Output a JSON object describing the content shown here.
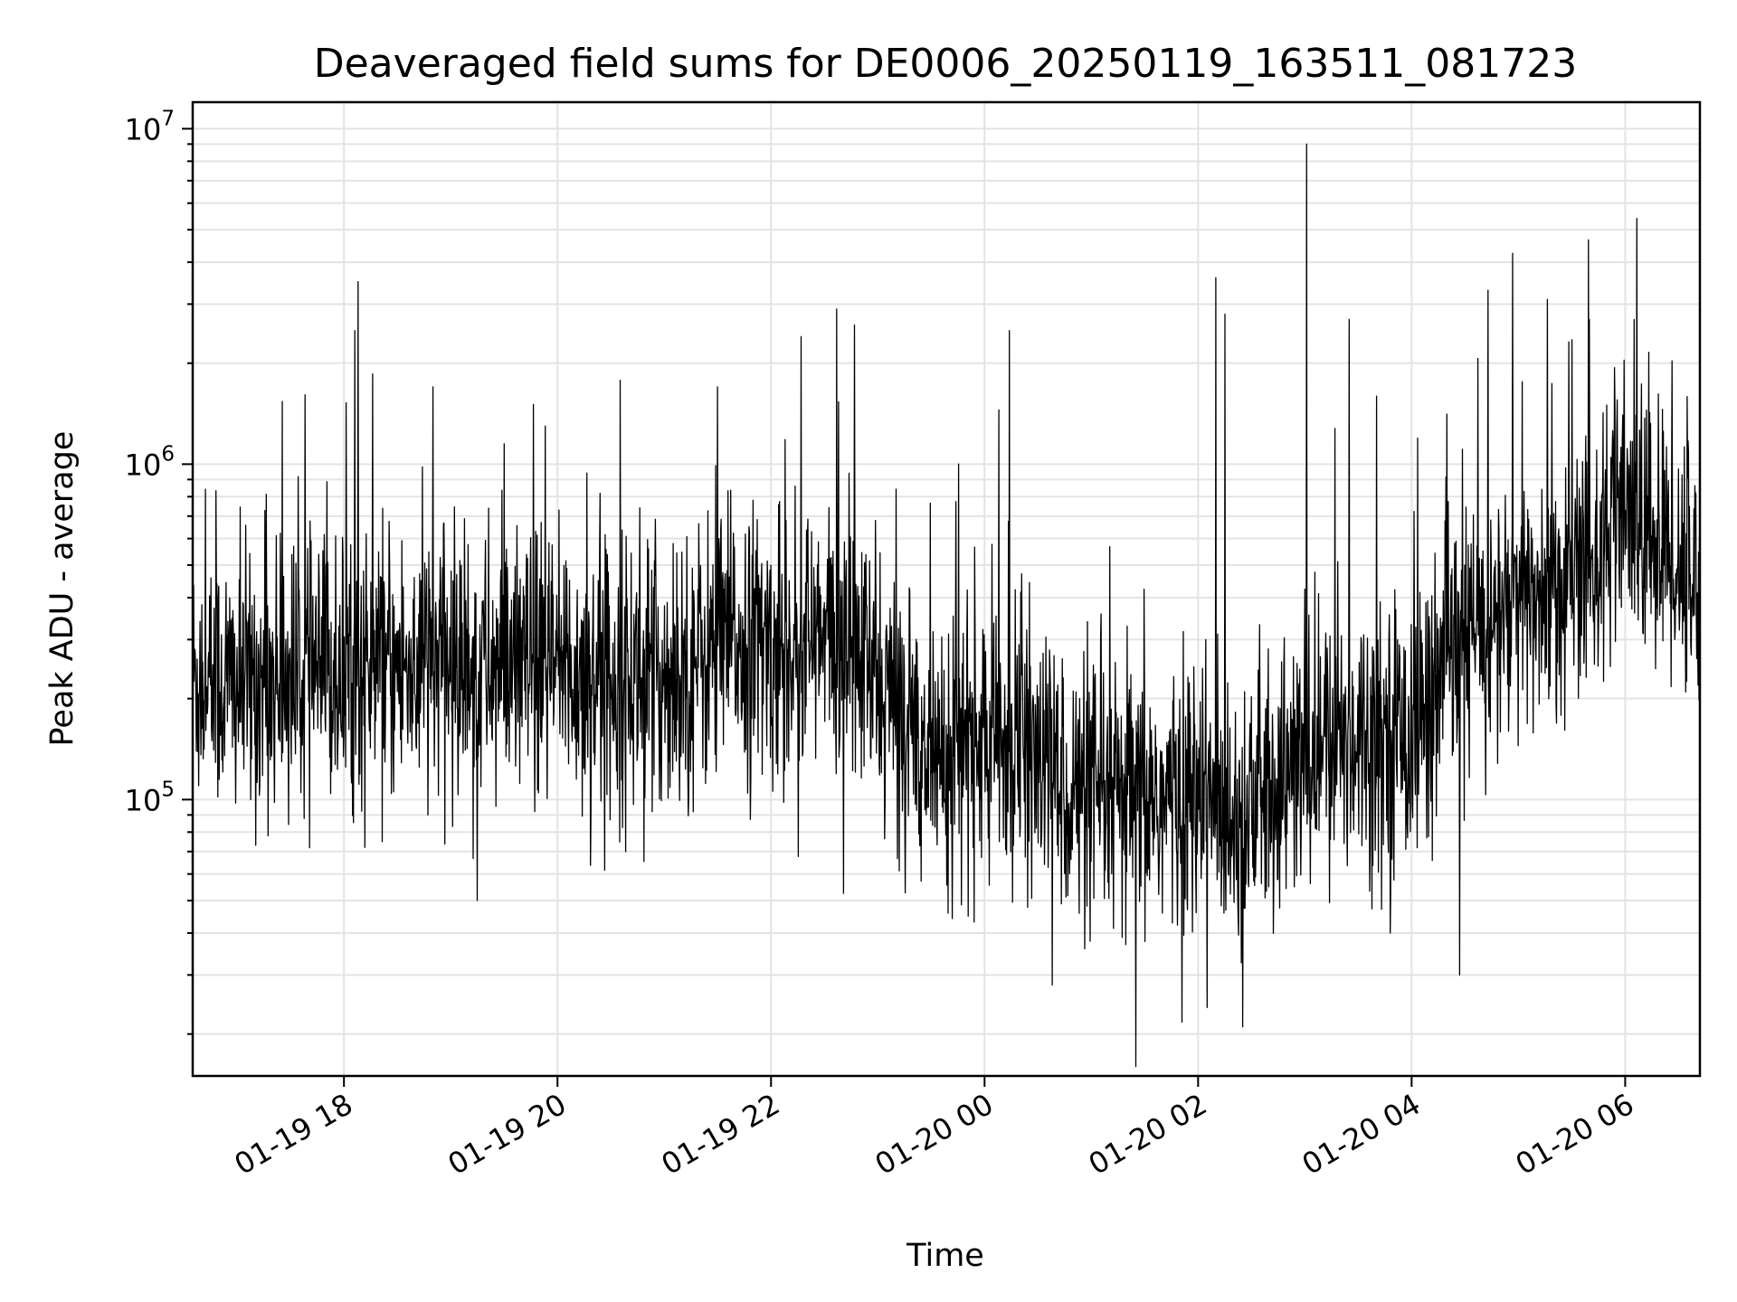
{
  "chart_data": {
    "type": "line",
    "title": "Deaveraged field sums for DE0006_20250119_163511_081723",
    "xlabel": "Time",
    "ylabel": "Peak ADU - average",
    "y_scale": "log",
    "ylim": [
      15000,
      12000000
    ],
    "xlim": [
      "2025-01-19T16:35",
      "2025-01-20T06:42"
    ],
    "grid": true,
    "grid_minor": true,
    "x_ticks": [
      {
        "value": "2025-01-19T18:00",
        "label": "01-19 18"
      },
      {
        "value": "2025-01-19T20:00",
        "label": "01-19 20"
      },
      {
        "value": "2025-01-19T22:00",
        "label": "01-19 22"
      },
      {
        "value": "2025-01-20T00:00",
        "label": "01-20 00"
      },
      {
        "value": "2025-01-20T02:00",
        "label": "01-20 02"
      },
      {
        "value": "2025-01-20T04:00",
        "label": "01-20 04"
      },
      {
        "value": "2025-01-20T06:00",
        "label": "01-20 06"
      }
    ],
    "y_ticks": [
      {
        "value": 100000,
        "base": "10",
        "exp": "5"
      },
      {
        "value": 1000000,
        "base": "10",
        "exp": "6"
      },
      {
        "value": 10000000,
        "base": "10",
        "exp": "7"
      }
    ],
    "series": [
      {
        "color": "#000000",
        "baseline": [
          [
            "2025-01-19T16:35",
            230000
          ],
          [
            "2025-01-19T17:00",
            220000
          ],
          [
            "2025-01-19T18:00",
            240000
          ],
          [
            "2025-01-19T19:00",
            250000
          ],
          [
            "2025-01-19T20:00",
            240000
          ],
          [
            "2025-01-19T21:00",
            230000
          ],
          [
            "2025-01-19T21:40",
            300000
          ],
          [
            "2025-01-19T22:00",
            280000
          ],
          [
            "2025-01-19T22:40",
            300000
          ],
          [
            "2025-01-19T23:00",
            220000
          ],
          [
            "2025-01-19T23:30",
            140000
          ],
          [
            "2025-01-20T00:00",
            150000
          ],
          [
            "2025-01-20T00:30",
            130000
          ],
          [
            "2025-01-20T01:00",
            95000
          ],
          [
            "2025-01-20T01:30",
            100000
          ],
          [
            "2025-01-20T02:00",
            100000
          ],
          [
            "2025-01-20T02:30",
            95000
          ],
          [
            "2025-01-20T03:00",
            130000
          ],
          [
            "2025-01-20T03:30",
            160000
          ],
          [
            "2025-01-20T04:00",
            160000
          ],
          [
            "2025-01-20T04:30",
            300000
          ],
          [
            "2025-01-20T05:00",
            380000
          ],
          [
            "2025-01-20T05:30",
            450000
          ],
          [
            "2025-01-20T06:00",
            700000
          ],
          [
            "2025-01-20T06:42",
            450000
          ]
        ],
        "peaks": [
          [
            "2025-01-19T18:08",
            3500000
          ],
          [
            "2025-01-19T18:06",
            2500000
          ],
          [
            "2025-01-19T18:50",
            1700000
          ],
          [
            "2025-01-19T19:30",
            1150000
          ],
          [
            "2025-01-19T21:30",
            1700000
          ],
          [
            "2025-01-19T22:17",
            2400000
          ],
          [
            "2025-01-19T22:37",
            2900000
          ],
          [
            "2025-01-19T22:47",
            2600000
          ],
          [
            "2025-01-20T00:14",
            2500000
          ],
          [
            "2025-01-20T02:10",
            3600000
          ],
          [
            "2025-01-20T02:15",
            2800000
          ],
          [
            "2025-01-20T02:25",
            2800000
          ],
          [
            "2025-01-20T03:01",
            9000000
          ],
          [
            "2025-01-20T03:25",
            2700000
          ],
          [
            "2025-01-20T04:43",
            3300000
          ],
          [
            "2025-01-20T05:40",
            2700000
          ],
          [
            "2025-01-20T06:05",
            2700000
          ]
        ],
        "dips": [
          [
            "2025-01-20T00:38",
            28000
          ],
          [
            "2025-01-20T01:25",
            16000
          ],
          [
            "2025-01-20T02:05",
            24000
          ],
          [
            "2025-01-20T02:25",
            21000
          ],
          [
            "2025-01-20T04:27",
            30000
          ],
          [
            "2025-01-19T19:15",
            50000
          ]
        ]
      }
    ]
  }
}
